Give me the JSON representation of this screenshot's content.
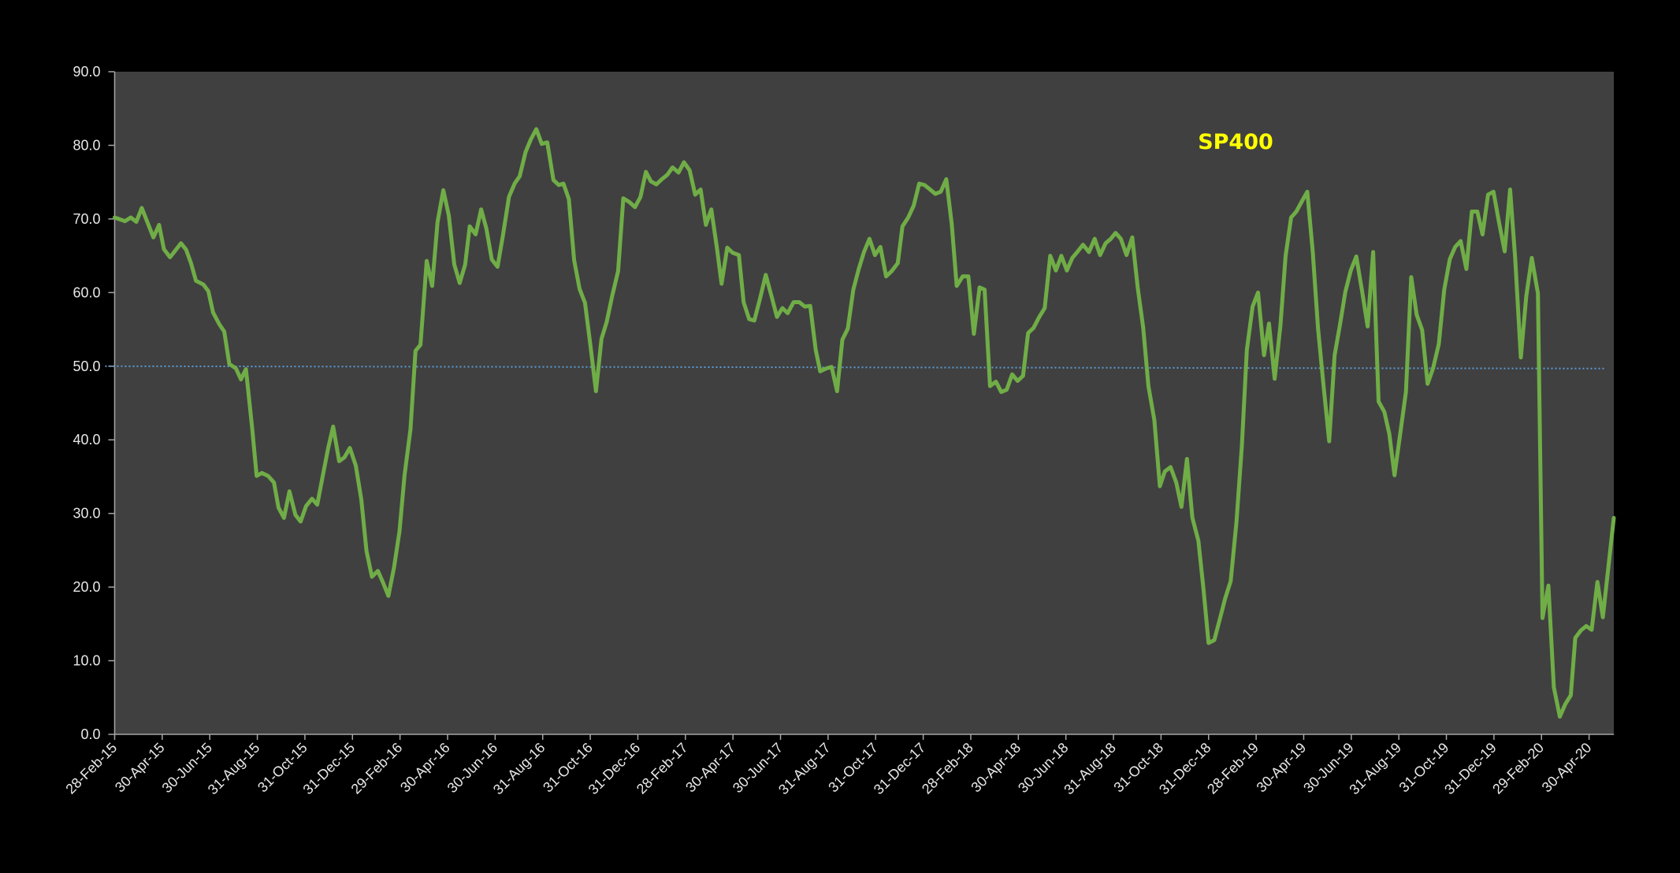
{
  "chart_data": {
    "type": "line",
    "title": "SP400",
    "xlabel": "",
    "ylabel": "",
    "x_unit": "months since 28-Feb-15",
    "xlim": [
      0,
      63.04
    ],
    "ylim": [
      0,
      90
    ],
    "grid": false,
    "legend": "none",
    "yticks": [
      "0.0",
      "10.0",
      "20.0",
      "30.0",
      "40.0",
      "50.0",
      "60.0",
      "70.0",
      "80.0",
      "90.0"
    ],
    "ytick_values": [
      0,
      10,
      20,
      30,
      40,
      50,
      60,
      70,
      80,
      90
    ],
    "xticks": [
      "28-Feb-15",
      "30-Apr-15",
      "30-Jun-15",
      "31-Aug-15",
      "31-Oct-15",
      "31-Dec-15",
      "29-Feb-16",
      "30-Apr-16",
      "30-Jun-16",
      "31-Aug-16",
      "31-Oct-16",
      "31-Dec-16",
      "28-Feb-17",
      "30-Apr-17",
      "30-Jun-17",
      "31-Aug-17",
      "31-Oct-17",
      "31-Dec-17",
      "28-Feb-18",
      "30-Apr-18",
      "30-Jun-18",
      "31-Aug-18",
      "31-Oct-18",
      "31-Dec-18",
      "28-Feb-19",
      "30-Apr-19",
      "30-Jun-19",
      "31-Aug-19",
      "31-Oct-19",
      "31-Dec-19",
      "29-Feb-20",
      "30-Apr-20"
    ],
    "xtick_values": [
      0,
      2,
      4,
      6,
      8,
      10,
      12,
      14,
      16,
      18,
      20,
      22,
      24,
      26,
      28,
      30,
      32,
      34,
      36,
      38,
      40,
      42,
      44,
      46,
      48,
      50,
      52,
      54,
      56,
      58,
      60,
      62
    ],
    "reference_line": {
      "value": 50,
      "color": "#5b9bd5",
      "style": "dotted"
    },
    "series": [
      {
        "name": "SP400",
        "color": "#70ad47",
        "points": [
          [
            0,
            70.2
          ],
          [
            0.43,
            69.7
          ],
          [
            0.68,
            70.2
          ],
          [
            0.91,
            69.6
          ],
          [
            1.14,
            71.5
          ],
          [
            1.63,
            67.5
          ],
          [
            1.87,
            69.2
          ],
          [
            2.07,
            65.9
          ],
          [
            2.33,
            64.8
          ],
          [
            2.79,
            66.7
          ],
          [
            3.01,
            65.8
          ],
          [
            3.21,
            64.0
          ],
          [
            3.42,
            61.6
          ],
          [
            3.73,
            61.1
          ],
          [
            3.94,
            60.2
          ],
          [
            4.14,
            57.3
          ],
          [
            4.4,
            55.7
          ],
          [
            4.61,
            54.7
          ],
          [
            4.82,
            50.3
          ],
          [
            5.1,
            49.7
          ],
          [
            5.31,
            48.2
          ],
          [
            5.52,
            49.6
          ],
          [
            5.78,
            41.7
          ],
          [
            5.97,
            35.1
          ],
          [
            6.19,
            35.5
          ],
          [
            6.45,
            35.1
          ],
          [
            6.7,
            34.2
          ],
          [
            6.89,
            30.8
          ],
          [
            7.12,
            29.4
          ],
          [
            7.35,
            33.0
          ],
          [
            7.6,
            29.8
          ],
          [
            7.82,
            28.9
          ],
          [
            8.05,
            31.0
          ],
          [
            8.3,
            32.0
          ],
          [
            8.52,
            31.2
          ],
          [
            8.75,
            35.1
          ],
          [
            8.98,
            38.9
          ],
          [
            9.19,
            41.8
          ],
          [
            9.44,
            37.1
          ],
          [
            9.66,
            37.6
          ],
          [
            9.89,
            38.9
          ],
          [
            10.14,
            36.5
          ],
          [
            10.37,
            31.9
          ],
          [
            10.59,
            24.9
          ],
          [
            10.82,
            21.4
          ],
          [
            11.07,
            22.2
          ],
          [
            11.3,
            20.5
          ],
          [
            11.51,
            18.8
          ],
          [
            11.75,
            22.7
          ],
          [
            11.98,
            27.6
          ],
          [
            12.19,
            35.2
          ],
          [
            12.44,
            41.4
          ],
          [
            12.65,
            52.1
          ],
          [
            12.86,
            52.9
          ],
          [
            13.12,
            64.3
          ],
          [
            13.35,
            60.9
          ],
          [
            13.58,
            69.6
          ],
          [
            13.82,
            73.9
          ],
          [
            14.05,
            70.5
          ],
          [
            14.28,
            63.8
          ],
          [
            14.51,
            61.3
          ],
          [
            14.74,
            63.8
          ],
          [
            14.93,
            69.0
          ],
          [
            15.18,
            67.9
          ],
          [
            15.41,
            71.3
          ],
          [
            15.63,
            68.7
          ],
          [
            15.86,
            64.5
          ],
          [
            16.1,
            63.5
          ],
          [
            16.33,
            67.8
          ],
          [
            16.58,
            73.0
          ],
          [
            16.82,
            74.8
          ],
          [
            17.03,
            75.8
          ],
          [
            17.28,
            79.1
          ],
          [
            17.5,
            80.8
          ],
          [
            17.73,
            82.2
          ],
          [
            17.96,
            80.2
          ],
          [
            18.19,
            80.4
          ],
          [
            18.45,
            75.3
          ],
          [
            18.68,
            74.6
          ],
          [
            18.87,
            74.8
          ],
          [
            19.1,
            72.7
          ],
          [
            19.32,
            64.4
          ],
          [
            19.55,
            60.5
          ],
          [
            19.78,
            58.6
          ],
          [
            20.01,
            52.7
          ],
          [
            20.24,
            46.6
          ],
          [
            20.47,
            53.7
          ],
          [
            20.69,
            56.0
          ],
          [
            20.92,
            59.5
          ],
          [
            21.17,
            62.9
          ],
          [
            21.39,
            72.8
          ],
          [
            21.64,
            72.3
          ],
          [
            21.88,
            71.6
          ],
          [
            22.11,
            73.0
          ],
          [
            22.34,
            76.4
          ],
          [
            22.55,
            75.1
          ],
          [
            22.78,
            74.7
          ],
          [
            23.01,
            75.4
          ],
          [
            23.24,
            76.0
          ],
          [
            23.46,
            77.0
          ],
          [
            23.71,
            76.3
          ],
          [
            23.94,
            77.7
          ],
          [
            24.18,
            76.6
          ],
          [
            24.41,
            73.3
          ],
          [
            24.64,
            74.0
          ],
          [
            24.86,
            69.2
          ],
          [
            25.09,
            71.3
          ],
          [
            25.32,
            66.2
          ],
          [
            25.52,
            61.2
          ],
          [
            25.76,
            66.1
          ],
          [
            25.99,
            65.4
          ],
          [
            26.25,
            65.1
          ],
          [
            26.45,
            58.7
          ],
          [
            26.68,
            56.4
          ],
          [
            26.9,
            56.2
          ],
          [
            27.13,
            59.1
          ],
          [
            27.38,
            62.4
          ],
          [
            27.62,
            59.5
          ],
          [
            27.85,
            56.7
          ],
          [
            28.08,
            57.9
          ],
          [
            28.3,
            57.2
          ],
          [
            28.55,
            58.7
          ],
          [
            28.79,
            58.7
          ],
          [
            29.02,
            58.1
          ],
          [
            29.25,
            58.2
          ],
          [
            29.48,
            52.2
          ],
          [
            29.67,
            49.3
          ],
          [
            29.92,
            49.7
          ],
          [
            30.15,
            49.9
          ],
          [
            30.38,
            46.6
          ],
          [
            30.6,
            53.6
          ],
          [
            30.83,
            55.1
          ],
          [
            31.06,
            60.4
          ],
          [
            31.29,
            63.2
          ],
          [
            31.51,
            65.5
          ],
          [
            31.74,
            67.3
          ],
          [
            31.97,
            65.1
          ],
          [
            32.2,
            66.2
          ],
          [
            32.44,
            62.2
          ],
          [
            32.67,
            62.9
          ],
          [
            32.93,
            64.0
          ],
          [
            33.13,
            69.0
          ],
          [
            33.37,
            70.2
          ],
          [
            33.6,
            71.8
          ],
          [
            33.83,
            74.8
          ],
          [
            34.06,
            74.6
          ],
          [
            34.29,
            74.0
          ],
          [
            34.51,
            73.4
          ],
          [
            34.74,
            73.7
          ],
          [
            34.97,
            75.4
          ],
          [
            35.2,
            69.3
          ],
          [
            35.41,
            60.9
          ],
          [
            35.66,
            62.2
          ],
          [
            35.9,
            62.2
          ],
          [
            36.13,
            54.4
          ],
          [
            36.37,
            60.7
          ],
          [
            36.58,
            60.4
          ],
          [
            36.81,
            47.3
          ],
          [
            37.06,
            47.9
          ],
          [
            37.28,
            46.5
          ],
          [
            37.51,
            46.8
          ],
          [
            37.74,
            48.9
          ],
          [
            37.97,
            48.0
          ],
          [
            38.2,
            48.7
          ],
          [
            38.41,
            54.5
          ],
          [
            38.64,
            55.2
          ],
          [
            38.88,
            56.7
          ],
          [
            39.11,
            57.9
          ],
          [
            39.34,
            65.0
          ],
          [
            39.58,
            63.0
          ],
          [
            39.81,
            65.0
          ],
          [
            40.04,
            63.0
          ],
          [
            40.27,
            64.7
          ],
          [
            40.5,
            65.6
          ],
          [
            40.72,
            66.5
          ],
          [
            40.97,
            65.5
          ],
          [
            41.21,
            67.3
          ],
          [
            41.44,
            65.1
          ],
          [
            41.67,
            66.7
          ],
          [
            41.89,
            67.3
          ],
          [
            42.09,
            68.1
          ],
          [
            42.31,
            67.3
          ],
          [
            42.55,
            65.1
          ],
          [
            42.79,
            67.5
          ],
          [
            43.02,
            60.7
          ],
          [
            43.25,
            55.2
          ],
          [
            43.47,
            47.3
          ],
          [
            43.72,
            42.7
          ],
          [
            43.95,
            33.7
          ],
          [
            44.16,
            35.7
          ],
          [
            44.4,
            36.3
          ],
          [
            44.64,
            34.2
          ],
          [
            44.86,
            30.9
          ],
          [
            45.09,
            37.4
          ],
          [
            45.32,
            29.4
          ],
          [
            45.57,
            26.3
          ],
          [
            45.79,
            19.6
          ],
          [
            46.0,
            12.4
          ],
          [
            46.24,
            12.8
          ],
          [
            46.47,
            15.6
          ],
          [
            46.7,
            18.5
          ],
          [
            46.93,
            20.8
          ],
          [
            47.17,
            28.8
          ],
          [
            47.4,
            39.2
          ],
          [
            47.61,
            52.2
          ],
          [
            47.85,
            58.1
          ],
          [
            48.08,
            60.0
          ],
          [
            48.33,
            51.5
          ],
          [
            48.54,
            55.8
          ],
          [
            48.78,
            48.3
          ],
          [
            49.02,
            55.5
          ],
          [
            49.24,
            65.0
          ],
          [
            49.47,
            70.2
          ],
          [
            49.69,
            71.0
          ],
          [
            49.94,
            72.5
          ],
          [
            50.15,
            73.7
          ],
          [
            50.38,
            65.6
          ],
          [
            50.6,
            55.2
          ],
          [
            50.83,
            47.5
          ],
          [
            51.07,
            39.8
          ],
          [
            51.3,
            51.5
          ],
          [
            51.53,
            55.7
          ],
          [
            51.75,
            60.1
          ],
          [
            51.98,
            63.0
          ],
          [
            52.21,
            64.9
          ],
          [
            52.46,
            60.1
          ],
          [
            52.69,
            55.4
          ],
          [
            52.92,
            65.5
          ],
          [
            53.15,
            45.2
          ],
          [
            53.39,
            43.8
          ],
          [
            53.6,
            40.8
          ],
          [
            53.82,
            35.2
          ],
          [
            54.07,
            41.1
          ],
          [
            54.3,
            46.5
          ],
          [
            54.52,
            62.1
          ],
          [
            54.75,
            57.0
          ],
          [
            54.98,
            54.9
          ],
          [
            55.21,
            47.6
          ],
          [
            55.44,
            49.7
          ],
          [
            55.68,
            53.0
          ],
          [
            55.91,
            60.4
          ],
          [
            56.14,
            64.5
          ],
          [
            56.37,
            66.2
          ],
          [
            56.6,
            67.0
          ],
          [
            56.84,
            63.2
          ],
          [
            57.07,
            71.0
          ],
          [
            57.3,
            71.0
          ],
          [
            57.52,
            67.9
          ],
          [
            57.75,
            73.3
          ],
          [
            57.98,
            73.7
          ],
          [
            58.21,
            69.6
          ],
          [
            58.45,
            65.6
          ],
          [
            58.68,
            74.0
          ],
          [
            58.89,
            64.7
          ],
          [
            59.13,
            51.2
          ],
          [
            59.36,
            59.5
          ],
          [
            59.59,
            64.7
          ],
          [
            59.85,
            59.9
          ],
          [
            60.04,
            15.8
          ],
          [
            60.29,
            20.2
          ],
          [
            60.52,
            6.4
          ],
          [
            60.77,
            2.4
          ],
          [
            61.0,
            4.1
          ],
          [
            61.23,
            5.3
          ],
          [
            61.42,
            13.1
          ],
          [
            61.65,
            14.1
          ],
          [
            61.88,
            14.7
          ],
          [
            62.11,
            14.2
          ],
          [
            62.35,
            20.7
          ],
          [
            62.58,
            15.9
          ],
          [
            62.81,
            22.7
          ],
          [
            63.04,
            29.4
          ]
        ]
      }
    ],
    "colors": {
      "background": "#000000",
      "plot_area": "#404040",
      "axis": "#a6a6a6",
      "text": "#e8e8e8",
      "title": "#ffff00"
    }
  }
}
